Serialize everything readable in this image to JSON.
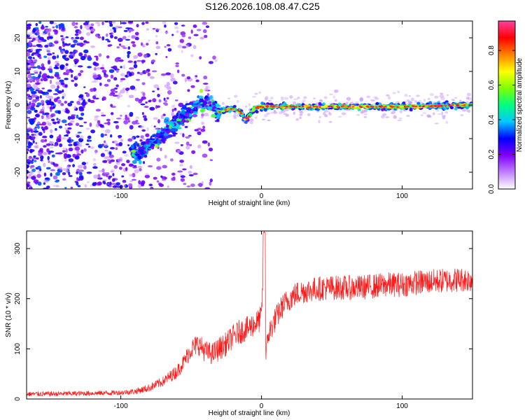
{
  "title": "S126.2026.108.08.47.C25",
  "colorbar": {
    "label": "Normalized spectral amplitude",
    "ticks": [
      "0.0",
      "0.2",
      "0.4",
      "0.6",
      "0.8"
    ],
    "tick_values": [
      0.0,
      0.2,
      0.4,
      0.6,
      0.8
    ],
    "range": [
      0,
      0.97
    ],
    "colors": [
      "#ffffff",
      "#c080ff",
      "#8000ff",
      "#0000ff",
      "#00c8ff",
      "#00ff80",
      "#80ff00",
      "#ffff00",
      "#ff8000",
      "#ff0000",
      "#ff40a0"
    ]
  },
  "chart_data": [
    {
      "type": "heatmap",
      "title": "",
      "xlabel": "Height of straight line (km)",
      "ylabel": "Frequency (Hz)",
      "xlim": [
        -167,
        150
      ],
      "ylim": [
        -25,
        25
      ],
      "xticks": [
        -100,
        0,
        100
      ],
      "xtick_labels": [
        "-100",
        "0",
        "100"
      ],
      "yticks": [
        -20,
        -10,
        0,
        10,
        20
      ],
      "ytick_labels": [
        "-20",
        "-10",
        "0",
        "10",
        "20"
      ],
      "description_series": {
        "name": "dominant frequency ridge",
        "x": [
          -85,
          -75,
          -65,
          -55,
          -45,
          -38,
          -30,
          -20,
          -15,
          -11,
          -5,
          0,
          50,
          100,
          150
        ],
        "y": [
          -14,
          -10,
          -7,
          -3,
          0,
          0.5,
          -2,
          -1,
          -2,
          -4.5,
          -1,
          -0.5,
          -0.5,
          -0.5,
          0
        ]
      }
    },
    {
      "type": "line",
      "title": "",
      "xlabel": "Height of straight line (km)",
      "ylabel": "SNR (10 * v/v)",
      "xlim": [
        -167,
        150
      ],
      "ylim": [
        0,
        335
      ],
      "xticks": [
        -100,
        0,
        100
      ],
      "xtick_labels": [
        "-100",
        "0",
        "100"
      ],
      "yticks": [
        0,
        100,
        200,
        300
      ],
      "ytick_labels": [
        "0",
        "100",
        "200",
        "300"
      ],
      "color": "#ff0000",
      "series": [
        {
          "name": "SNR",
          "x": [
            -167,
            -150,
            -130,
            -110,
            -100,
            -90,
            -80,
            -70,
            -60,
            -55,
            -50,
            -45,
            -40,
            -35,
            -30,
            -25,
            -20,
            -15,
            -10,
            -5,
            -2,
            0,
            2,
            3,
            5,
            10,
            15,
            20,
            25,
            30,
            40,
            50,
            60,
            70,
            80,
            90,
            100,
            110,
            120,
            130,
            140,
            150
          ],
          "y": [
            10,
            10,
            11,
            12,
            13,
            15,
            22,
            35,
            55,
            75,
            100,
            110,
            95,
            90,
            100,
            110,
            125,
            135,
            140,
            150,
            155,
            165,
            320,
            90,
            130,
            160,
            185,
            200,
            210,
            215,
            220,
            222,
            222,
            222,
            225,
            228,
            228,
            232,
            234,
            236,
            238,
            238
          ],
          "spread": [
            5,
            5,
            5,
            5,
            5,
            6,
            8,
            10,
            14,
            16,
            20,
            22,
            22,
            22,
            24,
            24,
            24,
            25,
            25,
            25,
            25,
            25,
            10,
            15,
            25,
            25,
            25,
            25,
            25,
            25,
            25,
            25,
            25,
            25,
            25,
            25,
            25,
            25,
            25,
            25,
            25,
            25
          ]
        }
      ]
    }
  ]
}
